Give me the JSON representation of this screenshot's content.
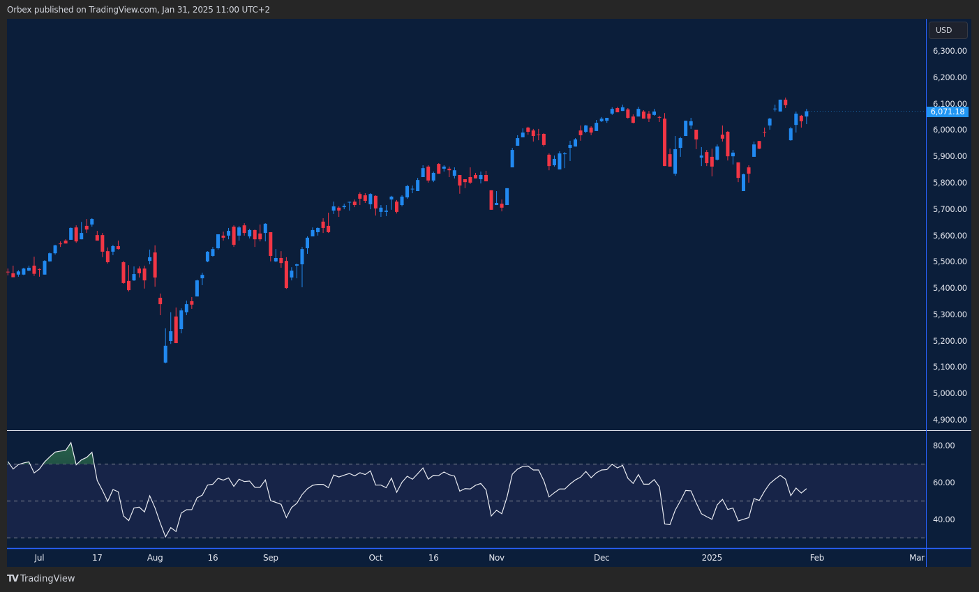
{
  "header": {
    "title": "Orbex published on TradingView.com, Jan 31, 2025 11:00 UTC+2"
  },
  "footer": {
    "brand": "TradingView",
    "logo_icon": "tradingview-logo-icon"
  },
  "colors": {
    "up": "#2189f0",
    "down": "#f23645",
    "background": "#0b1e3a",
    "rsi_band": "#172448",
    "rsi_line": "#e8eaf0",
    "overbought_fill": "#1f4a3a",
    "last_price": "#2196f3"
  },
  "price_axis": {
    "currency_button": "USD",
    "last_price_label": "6,071.18"
  },
  "chart_data": [
    {
      "type": "candlestick",
      "title": "",
      "ylim": [
        4870,
        6370
      ],
      "y_ticks": [
        "6,300.00",
        "6,200.00",
        "6,100.00",
        "6,000.00",
        "5,900.00",
        "5,800.00",
        "5,700.00",
        "5,600.00",
        "5,500.00",
        "5,400.00",
        "5,300.00",
        "5,200.00",
        "5,100.00",
        "5,000.00",
        "4,900.00"
      ],
      "x_ticks": [
        "Jul",
        "17",
        "Aug",
        "16",
        "Sep",
        "Oct",
        "16",
        "Nov",
        "Dec",
        "2025",
        "Feb",
        "Mar"
      ],
      "last_price": 6071.18,
      "ohlc_fields": [
        "open",
        "high",
        "low",
        "close"
      ],
      "candles": [
        [
          5462,
          5474,
          5448,
          5460
        ],
        [
          5456,
          5485,
          5441,
          5441
        ],
        [
          5451,
          5468,
          5443,
          5463
        ],
        [
          5451,
          5477,
          5449,
          5474
        ],
        [
          5466,
          5485,
          5464,
          5477
        ],
        [
          5485,
          5519,
          5446,
          5454
        ],
        [
          5472,
          5474,
          5443,
          5470
        ],
        [
          5451,
          5506,
          5451,
          5503
        ],
        [
          5501,
          5535,
          5500,
          5532
        ],
        [
          5532,
          5564,
          5527,
          5562
        ],
        [
          5569,
          5577,
          5556,
          5567
        ],
        [
          5580,
          5585,
          5569,
          5569
        ],
        [
          5583,
          5630,
          5583,
          5628
        ],
        [
          5630,
          5638,
          5572,
          5577
        ],
        [
          5585,
          5651,
          5585,
          5609
        ],
        [
          5636,
          5662,
          5609,
          5622
        ],
        [
          5641,
          5665,
          5633,
          5662
        ],
        [
          5601,
          5617,
          5580,
          5580
        ],
        [
          5601,
          5609,
          5517,
          5538
        ],
        [
          5540,
          5554,
          5493,
          5498
        ],
        [
          5538,
          5564,
          5525,
          5559
        ],
        [
          5559,
          5580,
          5546,
          5548
        ],
        [
          5498,
          5503,
          5416,
          5419
        ],
        [
          5427,
          5487,
          5387,
          5392
        ],
        [
          5429,
          5482,
          5427,
          5453
        ],
        [
          5474,
          5482,
          5440,
          5456
        ],
        [
          5474,
          5485,
          5398,
          5429
        ],
        [
          5503,
          5546,
          5490,
          5517
        ],
        [
          5535,
          5562,
          5405,
          5440
        ],
        [
          5363,
          5379,
          5297,
          5339
        ],
        [
          5117,
          5247,
          5114,
          5181
        ],
        [
          5199,
          5308,
          5188,
          5236
        ],
        [
          5292,
          5326,
          5191,
          5191
        ],
        [
          5244,
          5323,
          5228,
          5315
        ],
        [
          5308,
          5352,
          5297,
          5339
        ],
        [
          5350,
          5366,
          5321,
          5337
        ],
        [
          5368,
          5432,
          5368,
          5429
        ],
        [
          5437,
          5458,
          5411,
          5450
        ],
        [
          5501,
          5540,
          5498,
          5538
        ],
        [
          5522,
          5556,
          5519,
          5548
        ],
        [
          5551,
          5604,
          5546,
          5604
        ],
        [
          5599,
          5614,
          5580,
          5591
        ],
        [
          5599,
          5628,
          5585,
          5617
        ],
        [
          5633,
          5638,
          5556,
          5564
        ],
        [
          5599,
          5636,
          5580,
          5630
        ],
        [
          5638,
          5646,
          5599,
          5609
        ],
        [
          5596,
          5625,
          5588,
          5620
        ],
        [
          5620,
          5622,
          5556,
          5585
        ],
        [
          5607,
          5641,
          5577,
          5585
        ],
        [
          5609,
          5646,
          5577,
          5644
        ],
        [
          5612,
          5612,
          5501,
          5522
        ],
        [
          5501,
          5548,
          5498,
          5514
        ],
        [
          5514,
          5540,
          5477,
          5495
        ],
        [
          5503,
          5517,
          5397,
          5400
        ],
        [
          5440,
          5479,
          5429,
          5466
        ],
        [
          5485,
          5493,
          5437,
          5490
        ],
        [
          5490,
          5556,
          5403,
          5548
        ],
        [
          5551,
          5596,
          5530,
          5591
        ],
        [
          5596,
          5630,
          5596,
          5620
        ],
        [
          5612,
          5630,
          5599,
          5628
        ],
        [
          5652,
          5665,
          5609,
          5628
        ],
        [
          5636,
          5686,
          5609,
          5612
        ],
        [
          5694,
          5728,
          5681,
          5710
        ],
        [
          5705,
          5710,
          5670,
          5694
        ],
        [
          5707,
          5720,
          5699,
          5712
        ],
        [
          5726,
          5728,
          5694,
          5727
        ],
        [
          5728,
          5736,
          5707,
          5715
        ],
        [
          5757,
          5763,
          5715,
          5739
        ],
        [
          5752,
          5760,
          5723,
          5731
        ],
        [
          5718,
          5760,
          5699,
          5757
        ],
        [
          5750,
          5752,
          5675,
          5702
        ],
        [
          5689,
          5715,
          5670,
          5705
        ],
        [
          5689,
          5715,
          5673,
          5694
        ],
        [
          5736,
          5750,
          5697,
          5747
        ],
        [
          5728,
          5734,
          5683,
          5689
        ],
        [
          5715,
          5752,
          5710,
          5747
        ],
        [
          5744,
          5792,
          5739,
          5787
        ],
        [
          5775,
          5789,
          5760,
          5777
        ],
        [
          5768,
          5818,
          5768,
          5810
        ],
        [
          5821,
          5866,
          5821,
          5855
        ],
        [
          5861,
          5866,
          5800,
          5808
        ],
        [
          5808,
          5842,
          5802,
          5837
        ],
        [
          5871,
          5874,
          5834,
          5834
        ],
        [
          5853,
          5866,
          5842,
          5861
        ],
        [
          5853,
          5861,
          5821,
          5847
        ],
        [
          5826,
          5858,
          5816,
          5847
        ],
        [
          5829,
          5829,
          5758,
          5789
        ],
        [
          5813,
          5813,
          5779,
          5802
        ],
        [
          5821,
          5858,
          5795,
          5800
        ],
        [
          5829,
          5837,
          5816,
          5816
        ],
        [
          5813,
          5842,
          5797,
          5829
        ],
        [
          5829,
          5845,
          5805,
          5805
        ],
        [
          5771,
          5771,
          5697,
          5697
        ],
        [
          5715,
          5768,
          5715,
          5723
        ],
        [
          5720,
          5736,
          5691,
          5705
        ],
        [
          5715,
          5779,
          5715,
          5779
        ],
        [
          5858,
          5932,
          5858,
          5924
        ],
        [
          5940,
          5980,
          5940,
          5969
        ],
        [
          5972,
          6006,
          5972,
          5990
        ],
        [
          6009,
          6012,
          5982,
          5993
        ],
        [
          5998,
          6004,
          5956,
          5977
        ],
        [
          5983,
          6004,
          5961,
          5982
        ],
        [
          5985,
          5988,
          5937,
          5943
        ],
        [
          5906,
          5911,
          5847,
          5863
        ],
        [
          5866,
          5903,
          5861,
          5890
        ],
        [
          5850,
          5919,
          5850,
          5911
        ],
        [
          5908,
          5916,
          5855,
          5911
        ],
        [
          5932,
          5959,
          5882,
          5943
        ],
        [
          5937,
          5969,
          5937,
          5964
        ],
        [
          5998,
          6017,
          5959,
          5980
        ],
        [
          5993,
          6019,
          5988,
          6017
        ],
        [
          6009,
          6014,
          5980,
          5990
        ],
        [
          5996,
          6038,
          5996,
          6027
        ],
        [
          6033,
          6049,
          6030,
          6043
        ],
        [
          6035,
          6046,
          6027,
          6046
        ],
        [
          6062,
          6086,
          6057,
          6080
        ],
        [
          6083,
          6088,
          6067,
          6067
        ],
        [
          6072,
          6096,
          6072,
          6086
        ],
        [
          6078,
          6083,
          6043,
          6046
        ],
        [
          6051,
          6059,
          6025,
          6027
        ],
        [
          6051,
          6088,
          6051,
          6080
        ],
        [
          6070,
          6075,
          6043,
          6043
        ],
        [
          6062,
          6072,
          6030,
          6043
        ],
        [
          6057,
          6080,
          6054,
          6070
        ],
        [
          6049,
          6054,
          6030,
          6048
        ],
        [
          6043,
          6064,
          5863,
          5863
        ],
        [
          5908,
          5929,
          5861,
          5861
        ],
        [
          5834,
          5977,
          5826,
          5927
        ],
        [
          5932,
          5974,
          5898,
          5969
        ],
        [
          5977,
          6035,
          5977,
          6035
        ],
        [
          6017,
          6046,
          6004,
          6033
        ],
        [
          6001,
          6001,
          5927,
          5964
        ],
        [
          5895,
          5935,
          5863,
          5903
        ],
        [
          5916,
          5924,
          5863,
          5874
        ],
        [
          5898,
          5929,
          5824,
          5861
        ],
        [
          5887,
          5945,
          5884,
          5937
        ],
        [
          5982,
          6017,
          5956,
          5967
        ],
        [
          5993,
          5996,
          5884,
          5900
        ],
        [
          5900,
          5924,
          5869,
          5914
        ],
        [
          5877,
          5877,
          5802,
          5818
        ],
        [
          5768,
          5834,
          5768,
          5832
        ],
        [
          5858,
          5866,
          5800,
          5834
        ],
        [
          5898,
          5956,
          5898,
          5945
        ],
        [
          5958,
          5958,
          5927,
          5929
        ],
        [
          5993,
          6009,
          5974,
          5991
        ],
        [
          6017,
          6046,
          6001,
          6043
        ],
        [
          6079,
          6096,
          6070,
          6081
        ],
        [
          6070,
          6115,
          6070,
          6115
        ],
        [
          6115,
          6123,
          6083,
          6094
        ],
        [
          5961,
          6012,
          5959,
          6006
        ],
        [
          6019,
          6070,
          5990,
          6062
        ],
        [
          6054,
          6057,
          6009,
          6033
        ],
        [
          6051,
          6080,
          6022,
          6071
        ]
      ]
    },
    {
      "type": "line",
      "title": "",
      "ylim": [
        25,
        92
      ],
      "y_ticks": [
        "80.00",
        "60.00",
        "40.00"
      ],
      "levels": [
        70,
        50,
        30
      ],
      "band": [
        30,
        70
      ],
      "values": [
        71.4,
        67.3,
        69.7,
        70.6,
        71.2,
        65.2,
        67.3,
        71.2,
        74.0,
        76.5,
        77.0,
        77.4,
        81.6,
        69.6,
        72.3,
        73.6,
        76.4,
        61.1,
        55.7,
        49.8,
        56.2,
        55.0,
        41.9,
        39.4,
        46.2,
        46.7,
        44.1,
        52.8,
        46.3,
        38.1,
        30.6,
        35.6,
        33.5,
        43.5,
        45.3,
        45.3,
        51.7,
        53.2,
        58.6,
        59.1,
        62.3,
        61.3,
        62.5,
        57.9,
        61.8,
        60.5,
        60.8,
        57.4,
        57.4,
        61.4,
        50.2,
        49.2,
        48.2,
        41.0,
        46.5,
        48.8,
        53.5,
        56.6,
        58.5,
        59.0,
        59.0,
        57.2,
        64.1,
        63.0,
        64.0,
        64.9,
        63.6,
        65.3,
        64.3,
        66.3,
        58.6,
        58.6,
        57.2,
        62.4,
        54.7,
        60.1,
        63.4,
        61.8,
        64.8,
        67.9,
        61.8,
        63.9,
        63.8,
        65.7,
        64.2,
        63.5,
        55.3,
        56.7,
        56.5,
        58.5,
        59.5,
        56.1,
        41.9,
        45.0,
        43.1,
        52.2,
        64.5,
        67.3,
        68.7,
        68.9,
        66.8,
        66.8,
        61.0,
        52.2,
        54.5,
        56.5,
        56.5,
        59.2,
        61.4,
        62.9,
        66.0,
        62.6,
        65.3,
        66.8,
        67.0,
        69.9,
        67.9,
        69.3,
        62.3,
        59.5,
        64.3,
        59.1,
        59.1,
        61.6,
        57.6,
        37.6,
        37.2,
        45.0,
        50.1,
        55.7,
        55.5,
        49.0,
        43.1,
        41.5,
        40.1,
        47.9,
        50.9,
        45.4,
        46.2,
        39.2,
        40.1,
        41.0,
        51.3,
        50.3,
        55.3,
        59.4,
        61.8,
        63.9,
        61.8,
        52.9,
        57.0,
        54.3,
        56.7
      ]
    }
  ]
}
